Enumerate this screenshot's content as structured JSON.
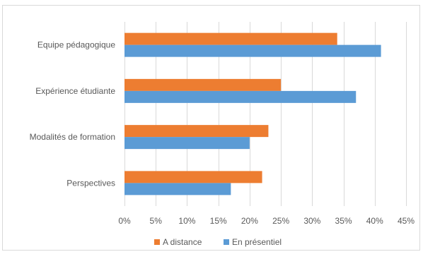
{
  "chart_data": {
    "type": "bar",
    "orientation": "horizontal",
    "categories": [
      "Equipe pédagogique",
      "Expérience étudiante",
      "Modalités de formation",
      "Perspectives"
    ],
    "series": [
      {
        "name": "A distance",
        "values": [
          34,
          25,
          23,
          22
        ],
        "color": "#ED7D31"
      },
      {
        "name": "En présentiel",
        "values": [
          41,
          37,
          20,
          17
        ],
        "color": "#5B9BD5"
      }
    ],
    "x_ticks": [
      "0%",
      "5%",
      "10%",
      "15%",
      "20%",
      "25%",
      "30%",
      "35%",
      "40%",
      "45%"
    ],
    "xlim": [
      0,
      45
    ],
    "grid": true,
    "legend_position": "bottom"
  }
}
